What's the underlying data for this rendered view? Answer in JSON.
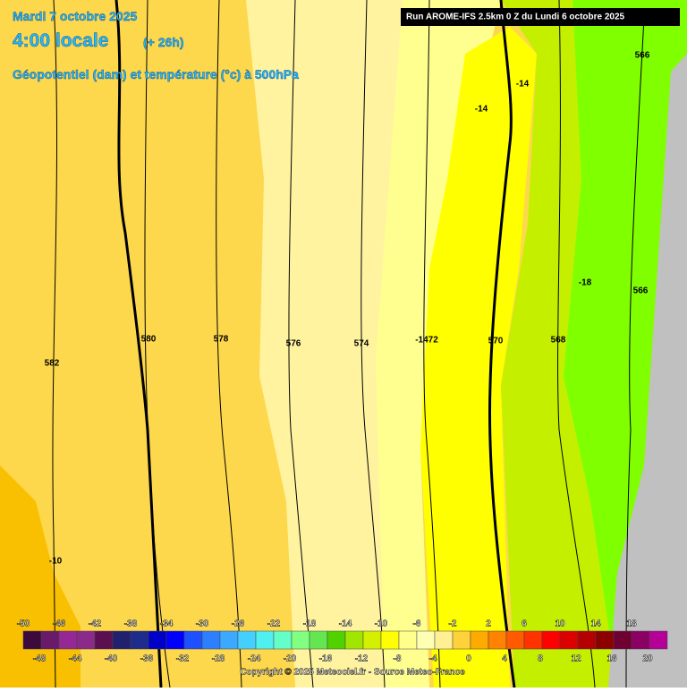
{
  "header": {
    "date": "Mardi 7 octobre 2025",
    "time": "4:00 locale",
    "lead": "(+ 26h)",
    "subtitle": "Géopotentiel (dam) et température (°c) à 500hPa",
    "run": "Run AROME-IFS 2.5km 0 Z du Lundi 6 octobre 2025"
  },
  "contour_labels": [
    "566",
    "-14",
    "-14",
    "-18",
    "566",
    "580",
    "578",
    "576",
    "574",
    "-1472",
    "570",
    "568",
    "582",
    "-10"
  ],
  "legend": {
    "top_labels": [
      -50,
      -46,
      -42,
      -38,
      -34,
      -30,
      -26,
      -22,
      -18,
      -14,
      -10,
      -6,
      -2,
      2,
      6,
      10,
      14,
      18
    ],
    "bottom_labels": [
      -48,
      -44,
      -40,
      -36,
      -32,
      -28,
      -24,
      -20,
      -16,
      -12,
      -8,
      -4,
      0,
      4,
      8,
      12,
      16,
      20
    ],
    "colors": [
      "#3c0a3c",
      "#6a1a6a",
      "#962896",
      "#8c2a8c",
      "#5a1050",
      "#20206e",
      "#1e2c8c",
      "#0000c8",
      "#0000ff",
      "#1e50ff",
      "#2c80ff",
      "#3ca8ff",
      "#44d0ff",
      "#50f0f0",
      "#64ffc8",
      "#80ff80",
      "#64e650",
      "#50d200",
      "#a0e600",
      "#d2f000",
      "#ffff00",
      "#ffff8c",
      "#ffffb4",
      "#fff096",
      "#ffd23c",
      "#ffaa00",
      "#ff8200",
      "#ff5a00",
      "#ff3200",
      "#ff0000",
      "#dc0000",
      "#b40000",
      "#8c0000",
      "#6e0032",
      "#8c0064",
      "#b40096"
    ]
  },
  "copyright": "Copyright © 2025 Meteociel.fr - Source Meteo-France"
}
